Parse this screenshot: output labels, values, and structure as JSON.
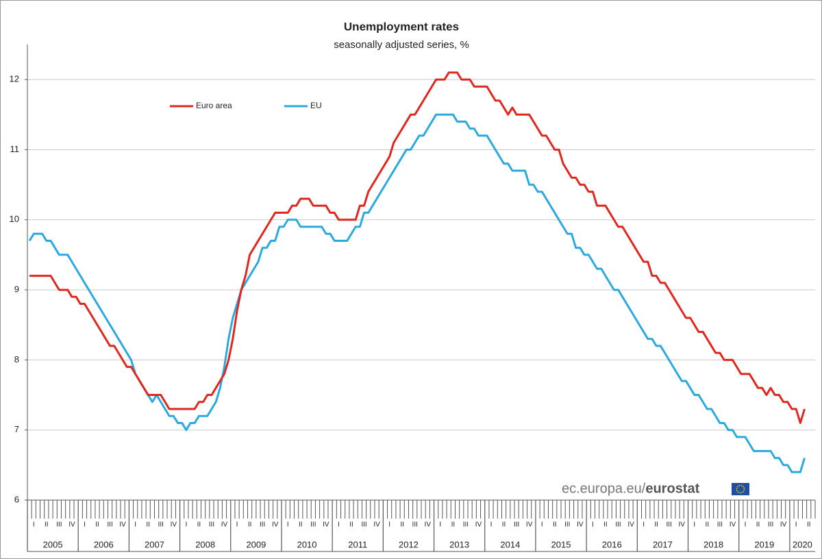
{
  "chart_data": {
    "type": "line",
    "title": "Unemployment rates",
    "subtitle": "seasonally adjusted series, %",
    "x_axis": {
      "years": [
        "2005",
        "2006",
        "2007",
        "2008",
        "2009",
        "2010",
        "2011",
        "2012",
        "2013",
        "2014",
        "2015",
        "2016",
        "2017",
        "2018",
        "2019",
        "2020"
      ],
      "quarters": [
        "I",
        "II",
        "III",
        "IV"
      ]
    },
    "series": [
      {
        "name": "Euro area",
        "color": "#e0261d",
        "values": [
          9.2,
          9.2,
          9.2,
          9.2,
          9.2,
          9.2,
          9.1,
          9.0,
          9.0,
          9.0,
          8.9,
          8.9,
          8.8,
          8.8,
          8.7,
          8.6,
          8.5,
          8.4,
          8.3,
          8.2,
          8.2,
          8.1,
          8.0,
          7.9,
          7.9,
          7.8,
          7.7,
          7.6,
          7.5,
          7.5,
          7.5,
          7.5,
          7.4,
          7.3,
          7.3,
          7.3,
          7.3,
          7.3,
          7.3,
          7.3,
          7.4,
          7.4,
          7.5,
          7.5,
          7.6,
          7.7,
          7.8,
          8.0,
          8.3,
          8.7,
          9.0,
          9.2,
          9.5,
          9.6,
          9.7,
          9.8,
          9.9,
          10.0,
          10.1,
          10.1,
          10.1,
          10.1,
          10.2,
          10.2,
          10.3,
          10.3,
          10.3,
          10.2,
          10.2,
          10.2,
          10.2,
          10.1,
          10.1,
          10.0,
          10.0,
          10.0,
          10.0,
          10.0,
          10.2,
          10.2,
          10.4,
          10.5,
          10.6,
          10.7,
          10.8,
          10.9,
          11.1,
          11.2,
          11.3,
          11.4,
          11.5,
          11.5,
          11.6,
          11.7,
          11.8,
          11.9,
          12.0,
          12.0,
          12.0,
          12.1,
          12.1,
          12.1,
          12.0,
          12.0,
          12.0,
          11.9,
          11.9,
          11.9,
          11.9,
          11.8,
          11.7,
          11.7,
          11.6,
          11.5,
          11.6,
          11.5,
          11.5,
          11.5,
          11.5,
          11.4,
          11.3,
          11.2,
          11.2,
          11.1,
          11.0,
          11.0,
          10.8,
          10.7,
          10.6,
          10.6,
          10.5,
          10.5,
          10.4,
          10.4,
          10.2,
          10.2,
          10.2,
          10.1,
          10.0,
          9.9,
          9.9,
          9.8,
          9.7,
          9.6,
          9.5,
          9.4,
          9.4,
          9.2,
          9.2,
          9.1,
          9.1,
          9.0,
          8.9,
          8.8,
          8.7,
          8.6,
          8.6,
          8.5,
          8.4,
          8.4,
          8.3,
          8.2,
          8.1,
          8.1,
          8.0,
          8.0,
          8.0,
          7.9,
          7.8,
          7.8,
          7.8,
          7.7,
          7.6,
          7.6,
          7.5,
          7.6,
          7.5,
          7.5,
          7.4,
          7.4,
          7.3,
          7.3,
          7.1,
          7.3
        ]
      },
      {
        "name": "EU",
        "color": "#29a9e0",
        "values": [
          9.7,
          9.8,
          9.8,
          9.8,
          9.7,
          9.7,
          9.6,
          9.5,
          9.5,
          9.5,
          9.4,
          9.3,
          9.2,
          9.1,
          9.0,
          8.9,
          8.8,
          8.7,
          8.6,
          8.5,
          8.4,
          8.3,
          8.2,
          8.1,
          8.0,
          7.8,
          7.7,
          7.6,
          7.5,
          7.4,
          7.5,
          7.4,
          7.3,
          7.2,
          7.2,
          7.1,
          7.1,
          7.0,
          7.1,
          7.1,
          7.2,
          7.2,
          7.2,
          7.3,
          7.4,
          7.6,
          7.9,
          8.3,
          8.6,
          8.8,
          9.0,
          9.1,
          9.2,
          9.3,
          9.4,
          9.6,
          9.6,
          9.7,
          9.7,
          9.9,
          9.9,
          10.0,
          10.0,
          10.0,
          9.9,
          9.9,
          9.9,
          9.9,
          9.9,
          9.9,
          9.8,
          9.8,
          9.7,
          9.7,
          9.7,
          9.7,
          9.8,
          9.9,
          9.9,
          10.1,
          10.1,
          10.2,
          10.3,
          10.4,
          10.5,
          10.6,
          10.7,
          10.8,
          10.9,
          11.0,
          11.0,
          11.1,
          11.2,
          11.2,
          11.3,
          11.4,
          11.5,
          11.5,
          11.5,
          11.5,
          11.5,
          11.4,
          11.4,
          11.4,
          11.3,
          11.3,
          11.2,
          11.2,
          11.2,
          11.1,
          11.0,
          10.9,
          10.8,
          10.8,
          10.7,
          10.7,
          10.7,
          10.7,
          10.5,
          10.5,
          10.4,
          10.4,
          10.3,
          10.2,
          10.1,
          10.0,
          9.9,
          9.8,
          9.8,
          9.6,
          9.6,
          9.5,
          9.5,
          9.4,
          9.3,
          9.3,
          9.2,
          9.1,
          9.0,
          9.0,
          8.9,
          8.8,
          8.7,
          8.6,
          8.5,
          8.4,
          8.3,
          8.3,
          8.2,
          8.2,
          8.1,
          8.0,
          7.9,
          7.8,
          7.7,
          7.7,
          7.6,
          7.5,
          7.5,
          7.4,
          7.3,
          7.3,
          7.2,
          7.1,
          7.1,
          7.0,
          7.0,
          6.9,
          6.9,
          6.9,
          6.8,
          6.7,
          6.7,
          6.7,
          6.7,
          6.7,
          6.6,
          6.6,
          6.5,
          6.5,
          6.4,
          6.4,
          6.4,
          6.6
        ]
      }
    ],
    "ylim": [
      6,
      12.5
    ],
    "yticks": [
      6,
      7,
      8,
      9,
      10,
      11,
      12
    ],
    "grid": true,
    "legend": "upper-left",
    "source": {
      "site": "ec.europa.eu/",
      "brand": "eurostat"
    }
  }
}
